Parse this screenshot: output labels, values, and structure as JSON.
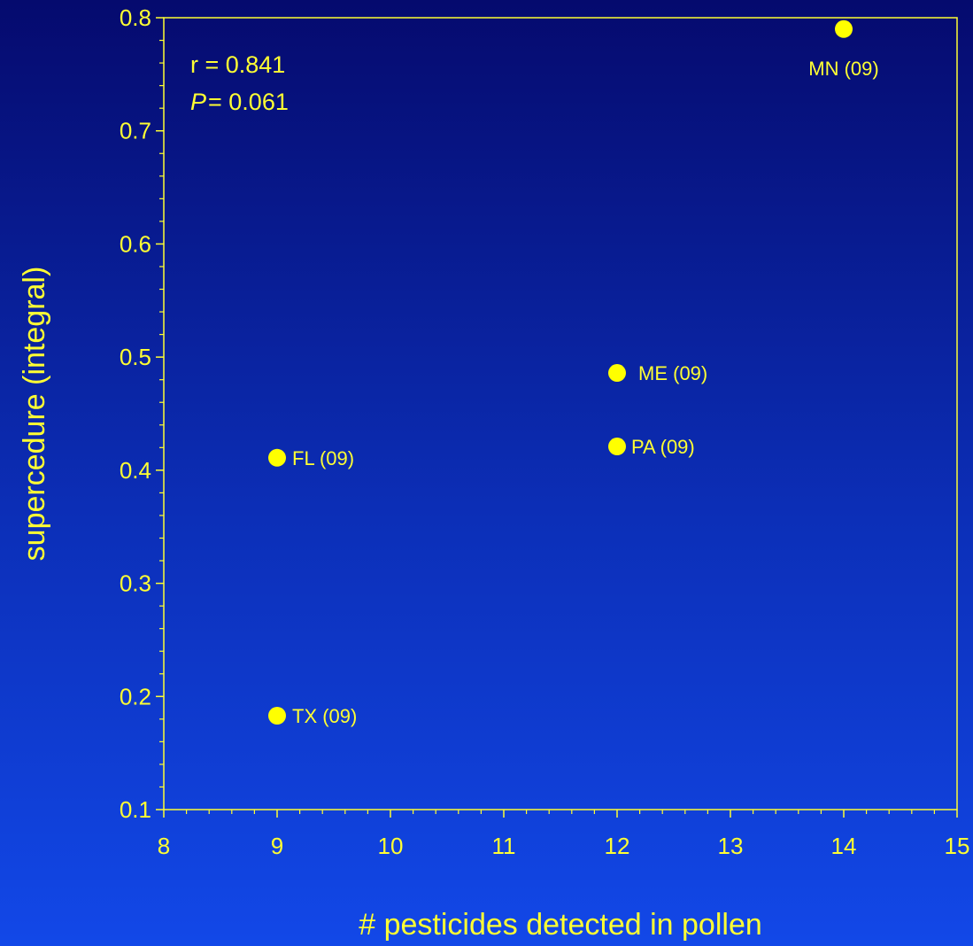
{
  "chart_data": {
    "type": "scatter",
    "xlabel": "# pesticides detected in pollen",
    "ylabel": "supercedure (integral)",
    "xlim": [
      8,
      15
    ],
    "ylim": [
      0.1,
      0.8
    ],
    "x_ticks": [
      "8",
      "9",
      "10",
      "11",
      "12",
      "13",
      "14",
      "15"
    ],
    "y_ticks": [
      "0.1",
      "0.2",
      "0.3",
      "0.4",
      "0.5",
      "0.6",
      "0.7",
      "0.8"
    ],
    "grid": false,
    "points": [
      {
        "label": "MN (09)",
        "x": 14,
        "y": 0.79
      },
      {
        "label": "ME (09)",
        "x": 12,
        "y": 0.486
      },
      {
        "label": "PA (09)",
        "x": 12,
        "y": 0.421
      },
      {
        "label": "FL (09)",
        "x": 9,
        "y": 0.411
      },
      {
        "label": "TX (09)",
        "x": 9,
        "y": 0.183
      }
    ],
    "annotations": {
      "r_text": "r = 0.841",
      "p_symbol": "P",
      "p_value": "= 0.061"
    },
    "colors": {
      "marker": "#ffff00",
      "text": "#ffff33",
      "axis": "#ffff33"
    }
  }
}
